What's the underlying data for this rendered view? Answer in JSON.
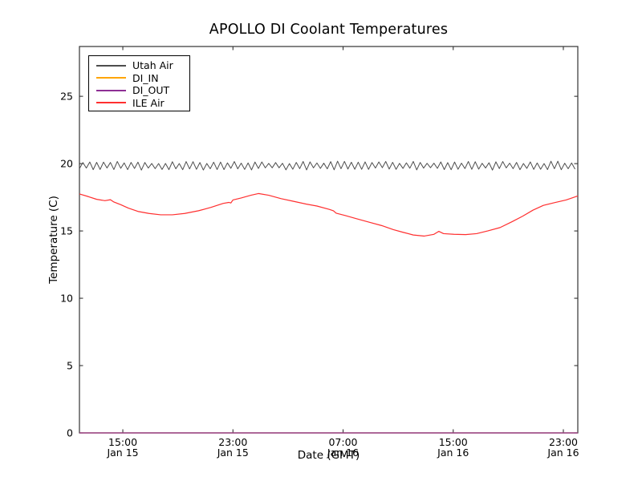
{
  "title": "APOLLO DI Coolant Temperatures",
  "xlabel": "Date (GMT)",
  "ylabel": "Temperature (C)",
  "frame_color": "#333333",
  "background_color": "#ffffff",
  "chart_data": {
    "type": "line",
    "title": "APOLLO DI Coolant Temperatures",
    "xlabel": "Date (GMT)",
    "ylabel": "Temperature (C)",
    "x_unit": "hours since Jan 15 00:00 GMT",
    "xlim": [
      11.85,
      48.05
    ],
    "ylim": [
      0,
      28.7
    ],
    "grid": false,
    "legend_position": "upper left",
    "x_ticks": [
      {
        "value": 15,
        "time": "15:00",
        "date": "Jan 15"
      },
      {
        "value": 23,
        "time": "23:00",
        "date": "Jan 15"
      },
      {
        "value": 31,
        "time": "07:00",
        "date": "Jan 16"
      },
      {
        "value": 39,
        "time": "15:00",
        "date": "Jan 16"
      },
      {
        "value": 47,
        "time": "23:00",
        "date": "Jan 16"
      }
    ],
    "y_ticks": [
      0,
      5,
      10,
      15,
      20,
      25
    ],
    "series": [
      {
        "name": "Utah Air",
        "color": "#4d4d4d",
        "style": "sawtooth_oscillation",
        "x_start": 11.85,
        "x_end": 48.05,
        "period_hours": 0.5,
        "base": 19.85,
        "amplitude": 0.24,
        "jitter": 0.09
      },
      {
        "name": "DI_IN",
        "color": "#ffa500",
        "points": [
          [
            11.85,
            0
          ],
          [
            48.05,
            0
          ]
        ]
      },
      {
        "name": "DI_OUT",
        "color": "#8e2f94",
        "points": [
          [
            11.85,
            0
          ],
          [
            48.05,
            0
          ]
        ]
      },
      {
        "name": "ILE Air",
        "color": "#ff2f2f",
        "points": [
          [
            11.85,
            17.75
          ],
          [
            12.5,
            17.55
          ],
          [
            13.1,
            17.35
          ],
          [
            13.7,
            17.25
          ],
          [
            14.1,
            17.32
          ],
          [
            14.35,
            17.15
          ],
          [
            14.85,
            16.95
          ],
          [
            15.4,
            16.7
          ],
          [
            16.1,
            16.45
          ],
          [
            16.9,
            16.3
          ],
          [
            17.75,
            16.2
          ],
          [
            18.6,
            16.2
          ],
          [
            19.5,
            16.3
          ],
          [
            20.5,
            16.5
          ],
          [
            21.4,
            16.75
          ],
          [
            22.3,
            17.05
          ],
          [
            22.7,
            17.12
          ],
          [
            22.85,
            17.08
          ],
          [
            23.0,
            17.3
          ],
          [
            23.6,
            17.45
          ],
          [
            24.3,
            17.65
          ],
          [
            24.85,
            17.78
          ],
          [
            25.6,
            17.65
          ],
          [
            26.5,
            17.4
          ],
          [
            27.4,
            17.2
          ],
          [
            28.3,
            17.0
          ],
          [
            29.1,
            16.85
          ],
          [
            30.0,
            16.6
          ],
          [
            30.3,
            16.5
          ],
          [
            30.5,
            16.32
          ],
          [
            31.15,
            16.15
          ],
          [
            32.0,
            15.9
          ],
          [
            32.9,
            15.65
          ],
          [
            33.8,
            15.4
          ],
          [
            34.65,
            15.1
          ],
          [
            35.35,
            14.9
          ],
          [
            36.1,
            14.7
          ],
          [
            36.9,
            14.62
          ],
          [
            37.6,
            14.75
          ],
          [
            37.95,
            14.97
          ],
          [
            38.3,
            14.8
          ],
          [
            39.05,
            14.75
          ],
          [
            39.9,
            14.73
          ],
          [
            40.7,
            14.8
          ],
          [
            41.5,
            15.0
          ],
          [
            42.4,
            15.25
          ],
          [
            43.3,
            15.7
          ],
          [
            44.05,
            16.1
          ],
          [
            44.8,
            16.55
          ],
          [
            45.55,
            16.9
          ],
          [
            46.35,
            17.1
          ],
          [
            47.2,
            17.3
          ],
          [
            48.05,
            17.6
          ]
        ]
      }
    ]
  }
}
